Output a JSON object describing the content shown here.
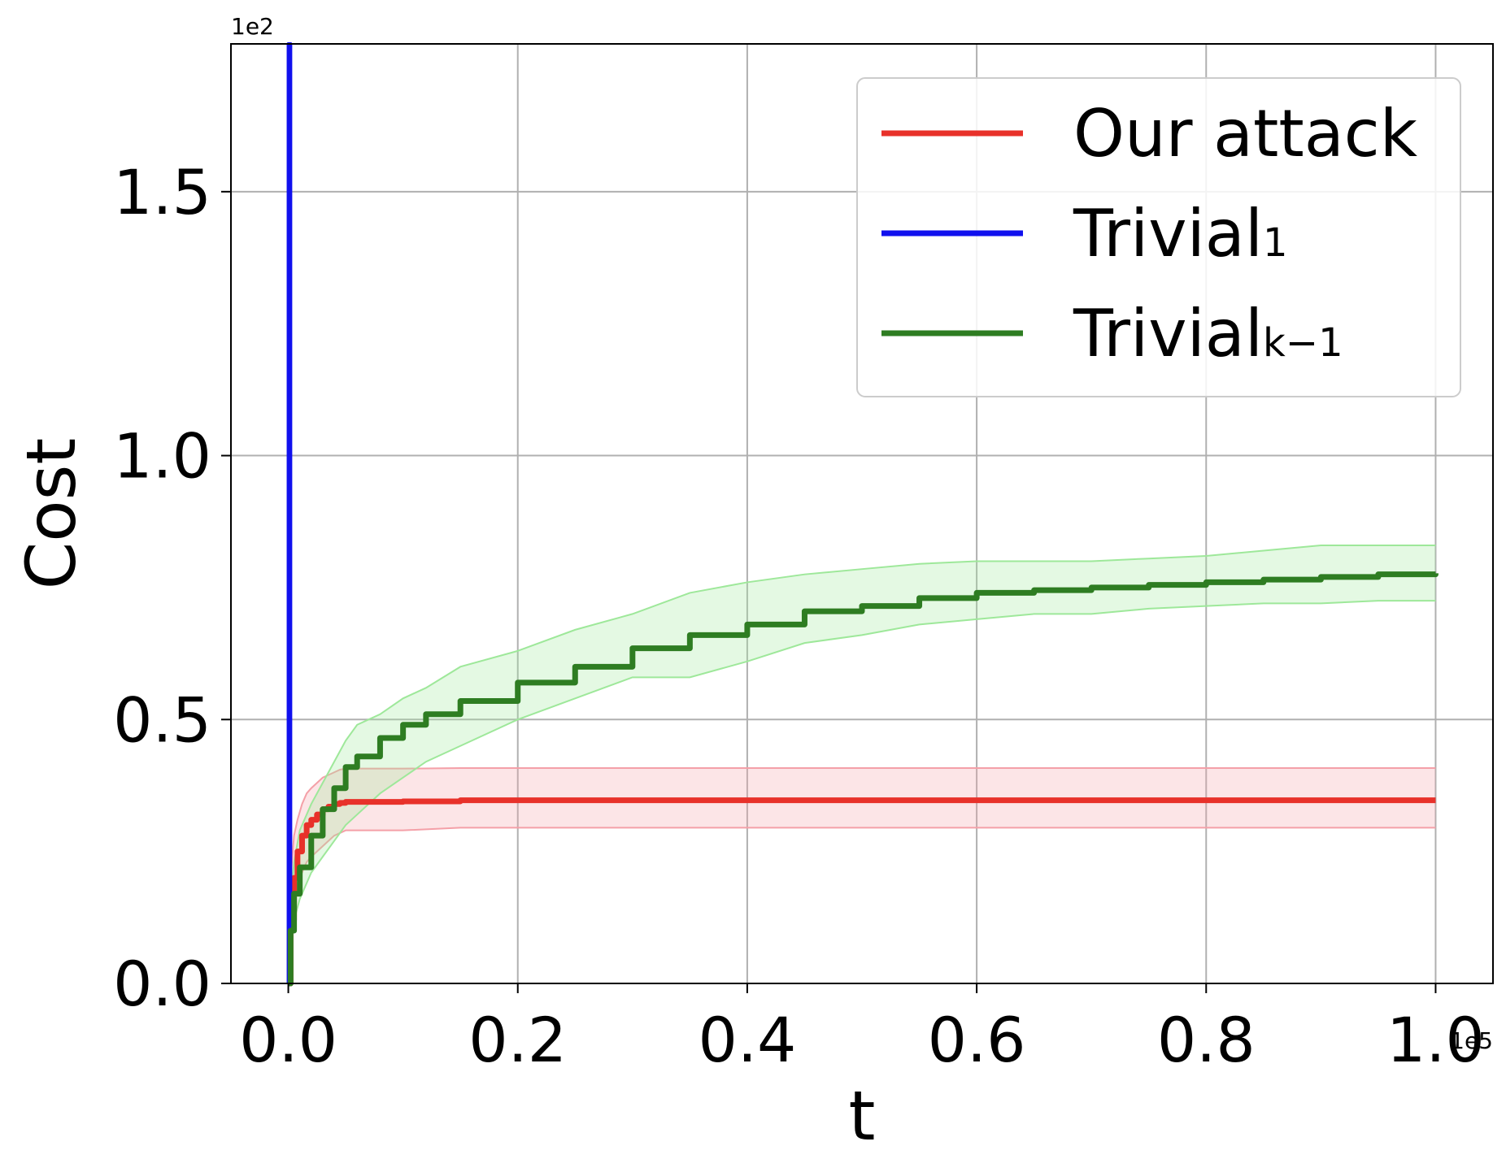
{
  "chart_data": {
    "type": "line",
    "title": "",
    "xlabel": "t",
    "ylabel": "Cost",
    "x_multiplier_label": "1e5",
    "y_multiplier_label": "1e2",
    "xlim": [
      -0.05,
      1.05
    ],
    "ylim": [
      0.0,
      1.78
    ],
    "x_ticks": [
      0.0,
      0.2,
      0.4,
      0.6,
      0.8,
      1.0
    ],
    "x_tick_labels": [
      "0.0",
      "0.2",
      "0.4",
      "0.6",
      "0.8",
      "1.0"
    ],
    "y_ticks": [
      0.0,
      0.5,
      1.0,
      1.5
    ],
    "y_tick_labels": [
      "0.0",
      "0.5",
      "1.0",
      "1.5"
    ],
    "grid": true,
    "legend_position": "top-right",
    "legend": [
      {
        "label_main": "Our attack",
        "label_sub": "",
        "color": "#e8312a",
        "series": 0
      },
      {
        "label_main": "Trivial",
        "label_sub": "1",
        "color": "#1010ee",
        "series": 1
      },
      {
        "label_main": "Trivial",
        "label_sub": "k−1",
        "color": "#2e7d22",
        "series": 2
      }
    ],
    "series": [
      {
        "name": "Our attack",
        "color": "#e8312a",
        "band_color": "#f4a0a8",
        "x": [
          0.0,
          0.002,
          0.005,
          0.008,
          0.012,
          0.016,
          0.02,
          0.025,
          0.03,
          0.035,
          0.04,
          0.045,
          0.05,
          0.1,
          0.15,
          0.2,
          0.4,
          0.6,
          0.8,
          1.0
        ],
        "y": [
          0.0,
          0.12,
          0.2,
          0.25,
          0.28,
          0.3,
          0.31,
          0.32,
          0.33,
          0.335,
          0.34,
          0.342,
          0.344,
          0.345,
          0.347,
          0.347,
          0.347,
          0.347,
          0.347,
          0.347
        ],
        "lower": [
          0.0,
          0.08,
          0.15,
          0.19,
          0.21,
          0.23,
          0.24,
          0.25,
          0.26,
          0.27,
          0.28,
          0.285,
          0.29,
          0.29,
          0.295,
          0.295,
          0.295,
          0.295,
          0.295,
          0.295
        ],
        "upper": [
          0.0,
          0.2,
          0.28,
          0.31,
          0.34,
          0.36,
          0.37,
          0.38,
          0.39,
          0.395,
          0.4,
          0.405,
          0.407,
          0.407,
          0.408,
          0.408,
          0.408,
          0.408,
          0.408,
          0.408
        ]
      },
      {
        "name": "Trivial₁",
        "color": "#1010ee",
        "band_color": "#9fa8ff",
        "x": [
          0.0,
          0.0,
          0.002,
          0.002
        ],
        "y": [
          0.0,
          1.8,
          1.8,
          0.0
        ],
        "lower": [],
        "upper": []
      },
      {
        "name": "Trivialₖ₋₁",
        "color": "#2e7d22",
        "band_color": "#9ee89a",
        "x": [
          0.0,
          0.002,
          0.005,
          0.01,
          0.02,
          0.03,
          0.04,
          0.05,
          0.06,
          0.08,
          0.1,
          0.12,
          0.15,
          0.2,
          0.25,
          0.3,
          0.35,
          0.4,
          0.45,
          0.5,
          0.55,
          0.6,
          0.65,
          0.7,
          0.75,
          0.8,
          0.85,
          0.9,
          0.95,
          1.0
        ],
        "y": [
          0.0,
          0.1,
          0.17,
          0.22,
          0.28,
          0.33,
          0.37,
          0.41,
          0.43,
          0.465,
          0.49,
          0.51,
          0.535,
          0.57,
          0.6,
          0.635,
          0.66,
          0.68,
          0.705,
          0.715,
          0.73,
          0.74,
          0.745,
          0.75,
          0.755,
          0.76,
          0.765,
          0.77,
          0.775,
          0.777
        ],
        "lower": [
          0.0,
          0.06,
          0.12,
          0.16,
          0.21,
          0.24,
          0.27,
          0.3,
          0.32,
          0.36,
          0.39,
          0.42,
          0.45,
          0.5,
          0.54,
          0.58,
          0.58,
          0.61,
          0.645,
          0.66,
          0.68,
          0.69,
          0.7,
          0.7,
          0.71,
          0.715,
          0.72,
          0.72,
          0.725,
          0.725
        ],
        "upper": [
          0.0,
          0.15,
          0.23,
          0.29,
          0.34,
          0.38,
          0.42,
          0.46,
          0.49,
          0.51,
          0.54,
          0.56,
          0.6,
          0.63,
          0.67,
          0.7,
          0.74,
          0.76,
          0.775,
          0.785,
          0.795,
          0.8,
          0.8,
          0.8,
          0.805,
          0.81,
          0.82,
          0.83,
          0.83,
          0.83
        ]
      }
    ]
  }
}
